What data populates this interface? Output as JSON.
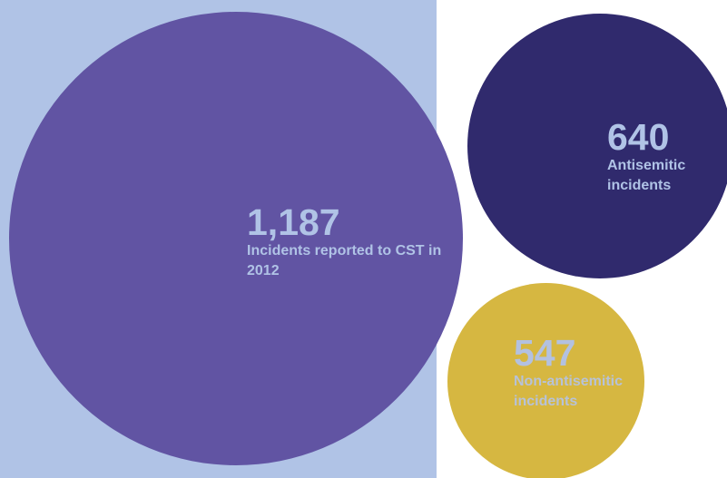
{
  "bubbles": {
    "total": {
      "value": "1,187",
      "caption": "Incidents reported to CST in 2012",
      "color": "#6154a3"
    },
    "antisemitic": {
      "value": "640",
      "caption": "Antisemitic incidents",
      "color": "#302a6d"
    },
    "non_antisemitic": {
      "value": "547",
      "caption": "Non-antisemitic incidents",
      "color": "#d6b741"
    }
  },
  "colors": {
    "panel_background": "#b0c3e6",
    "label_text": "#b0c3e6"
  }
}
